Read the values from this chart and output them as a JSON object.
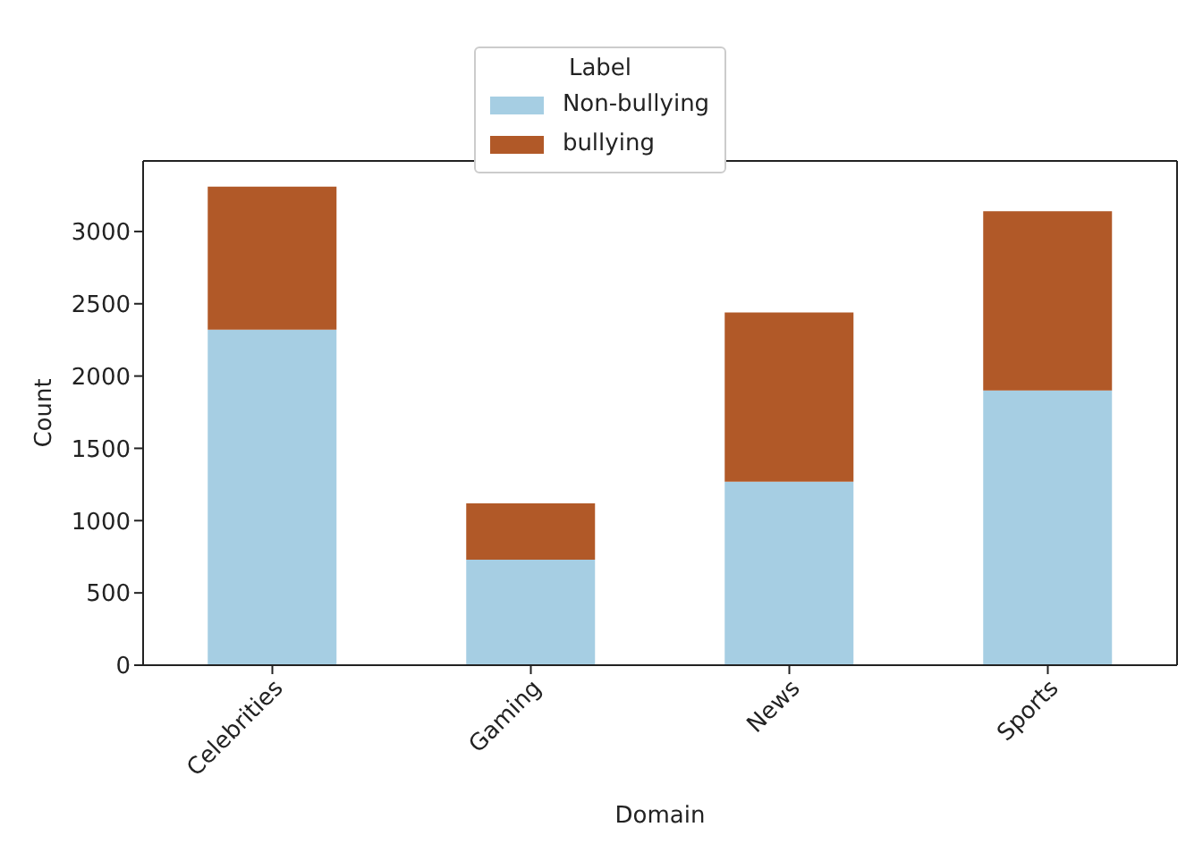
{
  "chart_data": {
    "type": "bar",
    "stacked": true,
    "xlabel": "Domain",
    "ylabel": "Count",
    "legend_title": "Label",
    "legend": "top",
    "categories": [
      "Celebrities",
      "Gaming",
      "News",
      "Sports"
    ],
    "series": [
      {
        "name": "Non-bullying",
        "color": "#a6cee3",
        "values": [
          2320,
          730,
          1270,
          1900
        ]
      },
      {
        "name": "bullying",
        "color": "#b15928",
        "values": [
          990,
          390,
          1170,
          1240
        ]
      }
    ],
    "ylim": [
      0,
      3488
    ],
    "yticks": [
      0,
      500,
      1000,
      1500,
      2000,
      2500,
      3000
    ],
    "grid": false
  }
}
